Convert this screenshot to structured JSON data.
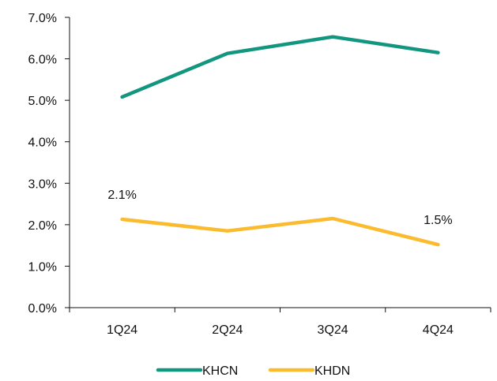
{
  "chart_data": {
    "type": "line",
    "categories": [
      "1Q24",
      "2Q24",
      "3Q24",
      "4Q24"
    ],
    "series": [
      {
        "name": "KHCN",
        "color": "#13967f",
        "values": [
          5.08,
          6.13,
          6.53,
          6.15
        ]
      },
      {
        "name": "KHDN",
        "color": "#fbbb2e",
        "values": [
          2.13,
          1.85,
          2.15,
          1.52
        ]
      }
    ],
    "ylim": [
      0,
      7
    ],
    "y_ticks": [
      "0.0%",
      "1.0%",
      "2.0%",
      "3.0%",
      "4.0%",
      "5.0%",
      "6.0%",
      "7.0%"
    ],
    "data_labels": [
      {
        "series": "KHDN",
        "category_index": 0,
        "text": "2.1%"
      },
      {
        "series": "KHDN",
        "category_index": 3,
        "text": "1.5%"
      }
    ],
    "grid": false,
    "legend": "bottom",
    "title": "",
    "xlabel": "",
    "ylabel": ""
  }
}
